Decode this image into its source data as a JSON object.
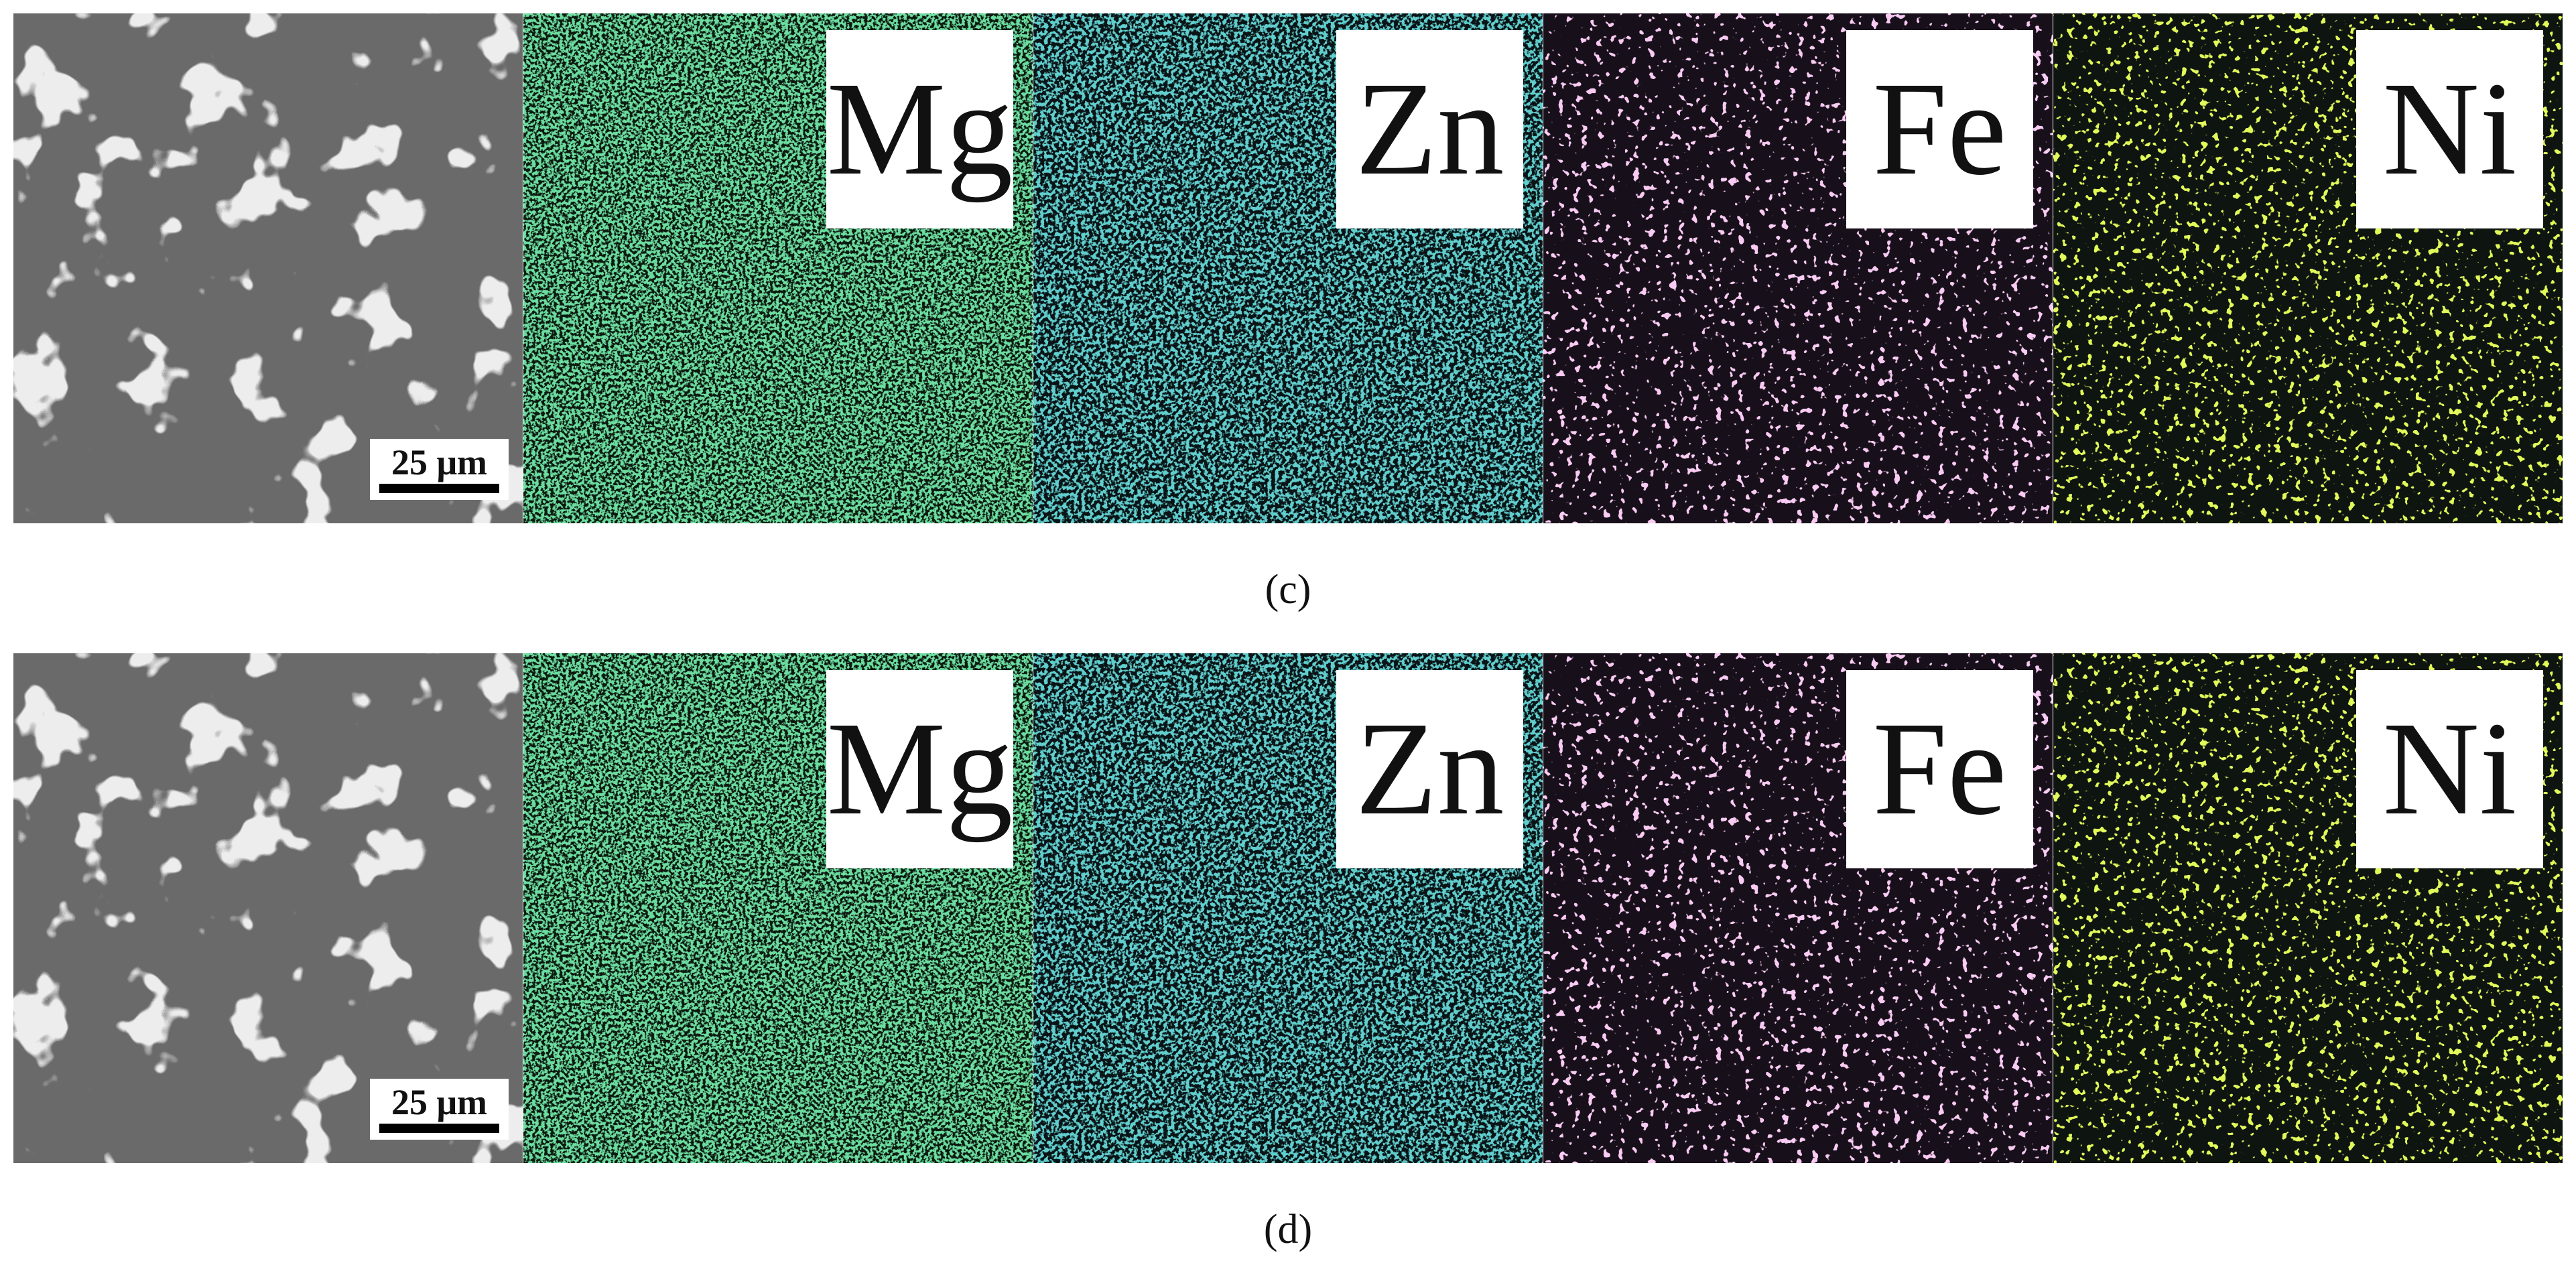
{
  "panels": [
    {
      "label": "(c)",
      "scale_bar": "25 μm",
      "maps": [
        "Mg",
        "Zn",
        "Fe",
        "Ni"
      ]
    },
    {
      "label": "(d)",
      "scale_bar": "25 μm",
      "maps": [
        "Mg",
        "Zn",
        "Fe",
        "Ni"
      ]
    }
  ]
}
